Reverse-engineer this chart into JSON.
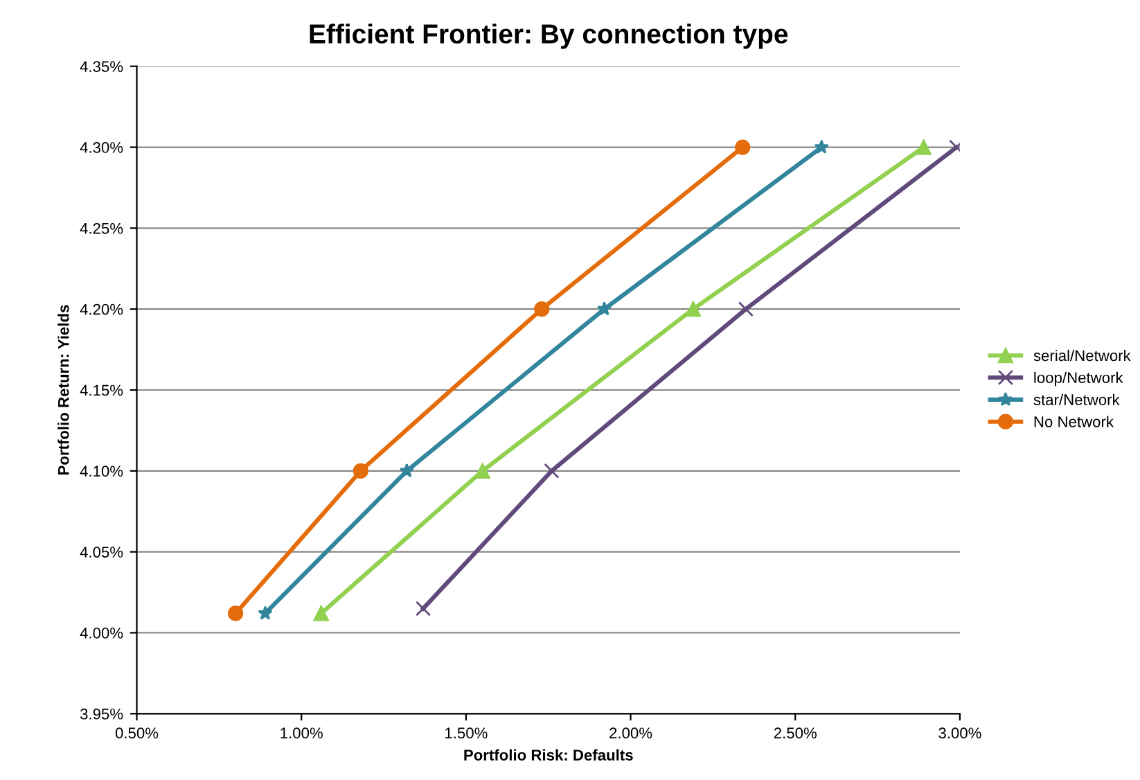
{
  "chart_data": {
    "type": "line",
    "title": "Efficient Frontier: By connection type",
    "xlabel": "Portfolio Risk: Defaults",
    "ylabel": "Portfolio Return: Yields",
    "series": [
      {
        "name": "serial/Network",
        "color": "#92d050",
        "marker": "triangle",
        "x": [
          1.06,
          1.55,
          2.19,
          2.89
        ],
        "values": [
          4.012,
          4.1,
          4.2,
          4.3
        ]
      },
      {
        "name": "loop/Network",
        "color": "#604a7b",
        "marker": "cross",
        "x": [
          1.37,
          1.76,
          2.35,
          2.99
        ],
        "values": [
          4.015,
          4.1,
          4.2,
          4.3
        ]
      },
      {
        "name": "star/Network",
        "color": "#31859c",
        "marker": "star",
        "x": [
          0.89,
          1.32,
          1.92,
          2.58
        ],
        "values": [
          4.012,
          4.1,
          4.2,
          4.3
        ]
      },
      {
        "name": "No Network",
        "color": "#e46c0a",
        "marker": "circle",
        "x": [
          0.8,
          1.18,
          1.73,
          2.34
        ],
        "values": [
          4.012,
          4.1,
          4.2,
          4.3
        ]
      }
    ],
    "xlim": [
      0.5,
      3.0
    ],
    "xticks": [
      {
        "value": 0.5,
        "label": "0.50%"
      },
      {
        "value": 1.0,
        "label": "1.00%"
      },
      {
        "value": 1.5,
        "label": "1.50%"
      },
      {
        "value": 2.0,
        "label": "2.00%"
      },
      {
        "value": 2.5,
        "label": "2.50%"
      },
      {
        "value": 3.0,
        "label": "3.00%"
      }
    ],
    "ylim": [
      3.95,
      4.35
    ],
    "yticks": [
      {
        "value": 3.95,
        "label": "3.95%"
      },
      {
        "value": 4.0,
        "label": "4.00%"
      },
      {
        "value": 4.05,
        "label": "4.05%"
      },
      {
        "value": 4.1,
        "label": "4.10%"
      },
      {
        "value": 4.15,
        "label": "4.15%"
      },
      {
        "value": 4.2,
        "label": "4.20%"
      },
      {
        "value": 4.25,
        "label": "4.25%"
      },
      {
        "value": 4.3,
        "label": "4.30%"
      },
      {
        "value": 4.35,
        "label": "4.35%"
      }
    ],
    "grid": "y",
    "legend": "right",
    "line_style": "solid"
  }
}
